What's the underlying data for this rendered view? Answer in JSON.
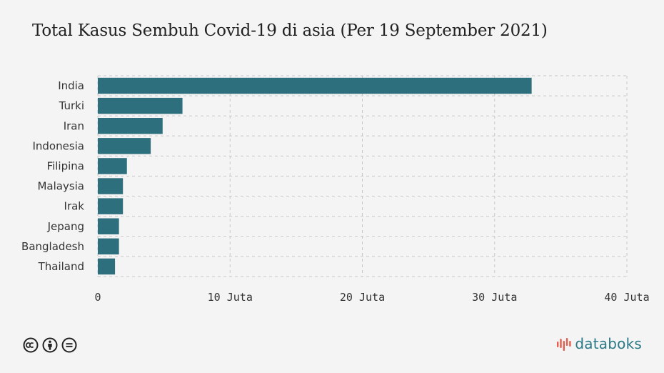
{
  "chart_data": {
    "type": "bar",
    "orientation": "horizontal",
    "title": "Total Kasus Sembuh Covid-19 di asia (Per 19 September 2021)",
    "categories": [
      "India",
      "Turki",
      "Iran",
      "Indonesia",
      "Filipina",
      "Malaysia",
      "Irak",
      "Jepang",
      "Bangladesh",
      "Thailand"
    ],
    "values": [
      32.8,
      6.4,
      4.9,
      4.0,
      2.2,
      1.9,
      1.9,
      1.6,
      1.6,
      1.3
    ],
    "value_unit": "Juta",
    "xlim": [
      0,
      40
    ],
    "x_ticks": [
      0,
      10,
      20,
      30,
      40
    ],
    "x_tick_labels": [
      "0",
      "10 Juta",
      "20 Juta",
      "30 Juta",
      "40 Juta"
    ],
    "xlabel": "",
    "ylabel": "",
    "grid": true,
    "bar_color": "#2e6f7e"
  },
  "footer": {
    "license_icons": [
      "creative-commons-icon",
      "attribution-icon",
      "no-derivatives-icon"
    ],
    "brand": "databoks",
    "brand_color": "#2a7886",
    "brand_icon_color": "#e35f4e"
  }
}
